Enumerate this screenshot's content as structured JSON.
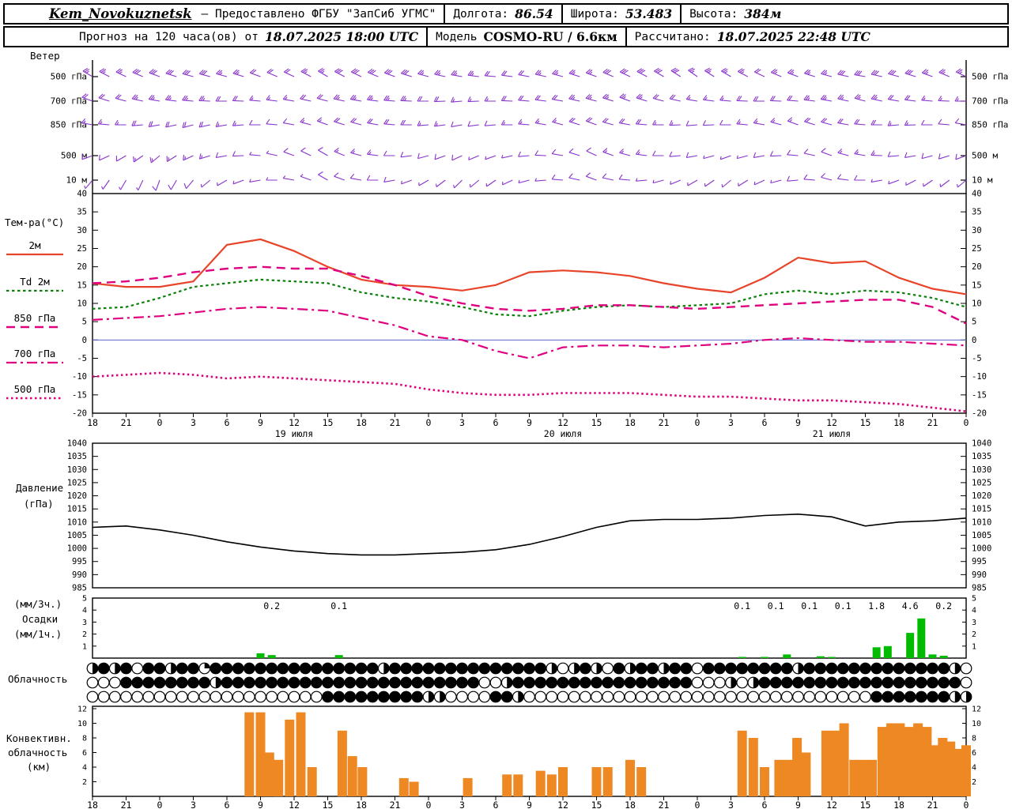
{
  "header": {
    "station": "Kem_Novokuznetsk",
    "provider": "— Предоставлено ФГБУ \"ЗапСиб УГМС\"",
    "lon_label": "Долгота:",
    "lon": "86.54",
    "lat_label": "Широта:",
    "lat": "53.483",
    "alt_label": "Высота:",
    "alt": "384м",
    "forecast_prefix": "Прогноз на 120 часа(ов) от",
    "forecast_time": "18.07.2025 18:00 UTC",
    "model_label": "Модель",
    "model": "COSMO-RU / 6.6км",
    "calc_label": "Рассчитано:",
    "calc_time": "18.07.2025 22:48 UTC"
  },
  "panels": {
    "wind": {
      "title": "Ветер"
    },
    "temp": {
      "title": "Тем-ра(°C)"
    },
    "pressure": {
      "line1": "Давление",
      "line2": "(гПа)"
    },
    "precip": {
      "line1": "(мм/3ч.)",
      "line2": "Осадки",
      "line3": "(мм/1ч.)"
    },
    "cloud": {
      "title": "Облачность"
    },
    "conv": {
      "line1": "Конвективн.",
      "line2": "облачность",
      "line3": "(км)"
    }
  },
  "chart_data": [
    {
      "id": "wind",
      "type": "wind-barbs",
      "color": "#8833cc",
      "x_hours_step": 3,
      "x_start_label": "18 UTC 18.07.2025",
      "levels": [
        "500 гПа",
        "700 гПа",
        "850 гПа",
        "500 м",
        "10 м"
      ],
      "series": [
        {
          "level": "500 гПа",
          "dir": [
            300,
            295,
            290,
            285,
            285,
            290,
            295,
            300,
            295,
            290,
            285,
            280,
            275,
            280,
            285,
            290,
            295,
            300,
            305,
            300,
            295,
            290,
            285,
            280,
            285,
            290,
            295
          ],
          "spd_kt": [
            25,
            25,
            30,
            30,
            25,
            20,
            20,
            25,
            30,
            30,
            25,
            25,
            20,
            20,
            25,
            25,
            30,
            30,
            25,
            25,
            20,
            25,
            25,
            30,
            30,
            25,
            25
          ]
        },
        {
          "level": "700 гПа",
          "dir": [
            290,
            285,
            280,
            275,
            270,
            275,
            280,
            285,
            280,
            275,
            270,
            265,
            270,
            275,
            280,
            285,
            290,
            285,
            280,
            275,
            270,
            275,
            280,
            285,
            280,
            275,
            270
          ],
          "spd_kt": [
            20,
            20,
            25,
            25,
            20,
            15,
            15,
            20,
            25,
            25,
            20,
            15,
            15,
            20,
            20,
            25,
            25,
            20,
            15,
            15,
            20,
            20,
            25,
            25,
            20,
            15,
            15
          ]
        },
        {
          "level": "850 гПа",
          "dir": [
            280,
            270,
            260,
            255,
            260,
            270,
            280,
            290,
            285,
            275,
            265,
            260,
            265,
            275,
            285,
            290,
            280,
            270,
            265,
            270,
            280,
            290,
            285,
            275,
            265,
            270,
            280
          ],
          "spd_kt": [
            15,
            15,
            20,
            20,
            15,
            10,
            10,
            15,
            20,
            20,
            15,
            10,
            10,
            15,
            15,
            20,
            20,
            15,
            10,
            10,
            15,
            15,
            20,
            20,
            15,
            10,
            10
          ]
        },
        {
          "level": "500 м",
          "dir": [
            250,
            240,
            230,
            245,
            260,
            275,
            290,
            300,
            285,
            270,
            255,
            245,
            250,
            265,
            280,
            295,
            285,
            270,
            260,
            250,
            260,
            275,
            290,
            280,
            265,
            255,
            250
          ],
          "spd_kt": [
            10,
            10,
            15,
            15,
            10,
            5,
            8,
            10,
            15,
            12,
            10,
            8,
            5,
            8,
            10,
            12,
            15,
            10,
            8,
            5,
            8,
            10,
            12,
            15,
            10,
            8,
            8
          ]
        },
        {
          "level": "10 м",
          "dir": [
            220,
            210,
            200,
            220,
            240,
            260,
            280,
            300,
            280,
            260,
            240,
            225,
            235,
            255,
            275,
            290,
            275,
            255,
            240,
            230,
            245,
            265,
            285,
            270,
            250,
            235,
            230
          ],
          "spd_kt": [
            5,
            5,
            8,
            8,
            5,
            3,
            5,
            8,
            10,
            8,
            5,
            3,
            3,
            5,
            8,
            10,
            8,
            5,
            3,
            3,
            5,
            8,
            10,
            8,
            5,
            3,
            5
          ]
        }
      ]
    },
    {
      "id": "temperature",
      "type": "line",
      "ylabel": "Тем-ра(°C)",
      "ylim": [
        -20,
        40
      ],
      "yticks": [
        40,
        35,
        30,
        25,
        20,
        15,
        10,
        5,
        0,
        -5,
        -10,
        -15,
        -20
      ],
      "zero_line_color": "#5566cc",
      "x_hours_step": 3,
      "x_tick_labels": [
        "18",
        "21",
        "0",
        "3",
        "6",
        "9",
        "12",
        "15",
        "18",
        "21",
        "0",
        "3",
        "6",
        "9",
        "12",
        "15",
        "18",
        "21",
        "0",
        "3",
        "6",
        "9",
        "12",
        "15",
        "18",
        "21",
        "0"
      ],
      "date_labels": [
        {
          "h": 18,
          "label": "19 июля"
        },
        {
          "h": 42,
          "label": "20 июля"
        },
        {
          "h": 66,
          "label": "21 июля"
        }
      ],
      "series": [
        {
          "name": "2м",
          "color": "#e8442a",
          "dash": "solid",
          "width": 2.2,
          "values": [
            15.5,
            14.5,
            14.5,
            16,
            26,
            27.5,
            24.3,
            20,
            16.5,
            15,
            14.5,
            13.5,
            15,
            18.5,
            19,
            18.5,
            17.5,
            15.5,
            14,
            13,
            17,
            22.5,
            21,
            21.5,
            17,
            14,
            12.5
          ]
        },
        {
          "name": "Td 2м",
          "color": "#0a800a",
          "dash": "dotted",
          "width": 2.2,
          "values": [
            8.5,
            9,
            11.5,
            14.5,
            15.5,
            16.5,
            16,
            15.5,
            13,
            11.5,
            10.5,
            9,
            7,
            6.5,
            8,
            9,
            9.5,
            9,
            9.5,
            10,
            12.5,
            13.5,
            12.5,
            13.5,
            13,
            11.5,
            9
          ]
        },
        {
          "name": "850 гПа",
          "color": "#e0007f",
          "dash": "dashed",
          "width": 2.4,
          "values": [
            15.5,
            16,
            17,
            18.5,
            19.5,
            20,
            19.5,
            19.5,
            17.5,
            15,
            12,
            10,
            8.5,
            8,
            8.5,
            9.5,
            9.5,
            9,
            8.5,
            9,
            9.5,
            10,
            10.5,
            11,
            11,
            9,
            4.5
          ]
        },
        {
          "name": "700 гПа",
          "color": "#e0007f",
          "dash": "dashdot",
          "width": 2.2,
          "values": [
            5.5,
            6,
            6.5,
            7.5,
            8.5,
            9,
            8.5,
            8,
            6,
            4,
            1,
            0,
            -3,
            -5,
            -2,
            -1.5,
            -1.5,
            -2,
            -1.5,
            -1,
            0,
            0.5,
            0,
            -0.5,
            -0.5,
            -1,
            -1.5
          ]
        },
        {
          "name": "500 гПа",
          "color": "#e0007f",
          "dash": "densedot",
          "width": 2.6,
          "values": [
            -10,
            -9.5,
            -9,
            -9.5,
            -10.5,
            -10,
            -10.5,
            -11,
            -11.5,
            -12,
            -13.5,
            -14.5,
            -15,
            -15,
            -14.5,
            -14.5,
            -14.5,
            -15,
            -15.5,
            -15.5,
            -16,
            -16.5,
            -16.5,
            -17,
            -17.5,
            -18.5,
            -19.5
          ]
        }
      ]
    },
    {
      "id": "pressure",
      "type": "line",
      "ylabel": "Давление (гПа)",
      "ylim": [
        985,
        1040
      ],
      "yticks": [
        1040,
        1035,
        1030,
        1025,
        1020,
        1015,
        1010,
        1005,
        1000,
        995,
        990,
        985
      ],
      "color": "#000000",
      "x_hours_step": 3,
      "values": [
        1008,
        1008.5,
        1007,
        1005,
        1002.5,
        1000.5,
        999,
        998,
        997.5,
        997.5,
        998,
        998.5,
        999.5,
        1001.5,
        1004.5,
        1008,
        1010.5,
        1011,
        1011,
        1011.5,
        1012.5,
        1013,
        1012,
        1008.5,
        1010,
        1010.5,
        1011.5
      ]
    },
    {
      "id": "precip",
      "type": "bar",
      "ylabel": "Осадки (мм/3ч., мм/1ч.)",
      "ylim": [
        0,
        5
      ],
      "yticks": [
        5,
        4,
        3,
        2,
        1
      ],
      "color": "#00bb00",
      "bars_1h": [
        {
          "h": 15,
          "v": 0.4
        },
        {
          "h": 16,
          "v": 0.25
        },
        {
          "h": 22,
          "v": 0.25
        },
        {
          "h": 58,
          "v": 0.1
        },
        {
          "h": 60,
          "v": 0.1
        },
        {
          "h": 62,
          "v": 0.3
        },
        {
          "h": 65,
          "v": 0.15
        },
        {
          "h": 66,
          "v": 0.1
        },
        {
          "h": 70,
          "v": 0.9
        },
        {
          "h": 71,
          "v": 1.0
        },
        {
          "h": 73,
          "v": 2.1
        },
        {
          "h": 74,
          "v": 3.3
        },
        {
          "h": 75,
          "v": 0.3
        },
        {
          "h": 76,
          "v": 0.2
        }
      ],
      "labels_3h": [
        {
          "h": 16,
          "v": "0.2"
        },
        {
          "h": 22,
          "v": "0.1"
        },
        {
          "h": 58,
          "v": "0.1"
        },
        {
          "h": 61,
          "v": "0.1"
        },
        {
          "h": 64,
          "v": "0.1"
        },
        {
          "h": 67,
          "v": "0.1"
        },
        {
          "h": 70,
          "v": "1.8"
        },
        {
          "h": 73,
          "v": "4.6"
        },
        {
          "h": 76,
          "v": "0.2"
        }
      ]
    },
    {
      "id": "cloud",
      "type": "symbols",
      "note": "hourly cloud-cover circles, value 0=clear .. 4=overcast (quarters filled)",
      "rows": [
        [
          "2424044244",
          "1444444444",
          "4444442444",
          "4444444444",
          "4202420424",
          "4244044444",
          "4442444444",
          "444444420"
        ],
        [
          "0004444444",
          "4244444444",
          "4444444444",
          "4444400244",
          "4444444444",
          "4444000202",
          "4444444444",
          "444444440"
        ],
        [
          "0000000000",
          "0000000000",
          "0444444444",
          "2200004420",
          "0000000000",
          "0000000000",
          "0000000000",
          "444444422"
        ]
      ]
    },
    {
      "id": "convective",
      "type": "bar",
      "ylabel": "Конвективн. облачность (км)",
      "ylim": [
        0,
        12
      ],
      "yticks": [
        12,
        10,
        8,
        6,
        4,
        2
      ],
      "color": "#ee8822",
      "x_tick_labels": [
        "18",
        "21",
        "0",
        "3",
        "6",
        "9",
        "12",
        "15",
        "18",
        "21",
        "0",
        "3",
        "6",
        "9",
        "12",
        "15",
        "18",
        "21",
        "0",
        "3",
        "6",
        "9",
        "12",
        "15",
        "18",
        "21",
        "0"
      ],
      "bars": [
        {
          "h": 14,
          "v": 11.5
        },
        {
          "h": 15,
          "v": 11.5
        },
        {
          "h": 15.8,
          "v": 6
        },
        {
          "h": 16.6,
          "v": 5
        },
        {
          "h": 17.6,
          "v": 10.5
        },
        {
          "h": 18.6,
          "v": 11.5
        },
        {
          "h": 19.6,
          "v": 4
        },
        {
          "h": 22.3,
          "v": 9
        },
        {
          "h": 23.2,
          "v": 5.5
        },
        {
          "h": 24.1,
          "v": 4
        },
        {
          "h": 27.8,
          "v": 2.5
        },
        {
          "h": 28.7,
          "v": 2
        },
        {
          "h": 33.5,
          "v": 2.5
        },
        {
          "h": 37,
          "v": 3
        },
        {
          "h": 38,
          "v": 3
        },
        {
          "h": 40,
          "v": 3.5
        },
        {
          "h": 41,
          "v": 3
        },
        {
          "h": 42,
          "v": 4
        },
        {
          "h": 45,
          "v": 4
        },
        {
          "h": 46,
          "v": 4
        },
        {
          "h": 48,
          "v": 5
        },
        {
          "h": 49,
          "v": 4
        },
        {
          "h": 58,
          "v": 9
        },
        {
          "h": 59,
          "v": 8
        },
        {
          "h": 60,
          "v": 4
        },
        {
          "h": 61.3,
          "v": 5
        },
        {
          "h": 62.1,
          "v": 5
        },
        {
          "h": 62.9,
          "v": 8
        },
        {
          "h": 63.7,
          "v": 6
        },
        {
          "h": 65.5,
          "v": 9
        },
        {
          "h": 66.3,
          "v": 9
        },
        {
          "h": 67.1,
          "v": 10
        },
        {
          "h": 68,
          "v": 5
        },
        {
          "h": 68.8,
          "v": 5
        },
        {
          "h": 69.6,
          "v": 5
        },
        {
          "h": 70.5,
          "v": 9.5
        },
        {
          "h": 71.3,
          "v": 10
        },
        {
          "h": 72.1,
          "v": 10
        },
        {
          "h": 72.9,
          "v": 9.5
        },
        {
          "h": 73.7,
          "v": 10
        },
        {
          "h": 74.5,
          "v": 9.5
        },
        {
          "h": 75.2,
          "v": 7
        },
        {
          "h": 75.9,
          "v": 8
        },
        {
          "h": 76.6,
          "v": 7.5
        },
        {
          "h": 77.3,
          "v": 6.5
        },
        {
          "h": 78,
          "v": 7
        }
      ]
    }
  ]
}
